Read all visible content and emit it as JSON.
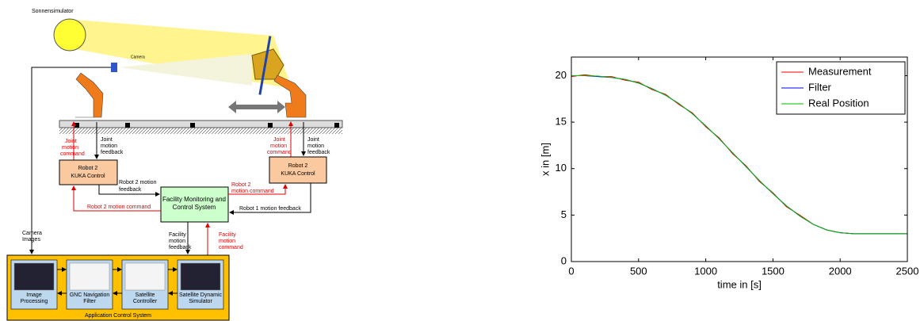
{
  "diagram": {
    "sun_label": "Sonnensimulator",
    "camera_label": "Camera",
    "camera_images": [
      "Camera",
      "Images"
    ],
    "left_command": [
      "Joint",
      "motion",
      "command"
    ],
    "left_feedback": [
      "Joint",
      "motion",
      "feedback"
    ],
    "right_command": [
      "Joint",
      "motion",
      "command"
    ],
    "right_feedback": [
      "Joint",
      "motion",
      "feedback"
    ],
    "left_box": [
      "Robot 2",
      "KUKA Control"
    ],
    "right_box": [
      "Robot 2",
      "KUKA Control"
    ],
    "center_box": [
      "Facility Monitoring and",
      "Control System"
    ],
    "left_motion_feedback": [
      "Robot 2 motion",
      "feedback"
    ],
    "right_motion_command": [
      "Robot 2",
      "motion command"
    ],
    "left_motion_command": "Robot 2 motion command",
    "robot1_feedback": "Robot 1 motion feedback",
    "facility_feedback": [
      "Facility",
      "motion",
      "feedback"
    ],
    "facility_command": [
      "Facility",
      "motion",
      "command"
    ],
    "modules": [
      [
        "Image",
        "Processing"
      ],
      [
        "GNC Navigation",
        "Filter"
      ],
      [
        "Satellite",
        "Controller"
      ],
      [
        "Satellite Dynamic",
        "Simulator"
      ]
    ],
    "frame_label": "Application Control System"
  },
  "chart_data": {
    "type": "line",
    "x": [
      0,
      100,
      200,
      300,
      400,
      500,
      600,
      700,
      800,
      900,
      1000,
      1100,
      1200,
      1300,
      1400,
      1500,
      1600,
      1700,
      1800,
      1900,
      2000,
      2100,
      2200,
      2300,
      2400,
      2500
    ],
    "series": [
      {
        "name": "Measurement",
        "color": "#ff0000",
        "values": [
          19.9,
          20.1,
          19.9,
          19.9,
          19.5,
          19.3,
          18.5,
          18,
          16.9,
          16,
          14.5,
          13.3,
          11.6,
          10.3,
          8.6,
          7.4,
          5.9,
          5,
          4,
          3.4,
          3.1,
          3,
          3,
          3,
          3,
          3
        ]
      },
      {
        "name": "Filter",
        "color": "#0000ff",
        "values": [
          20,
          20,
          19.9,
          19.8,
          19.6,
          19.2,
          18.6,
          17.9,
          17,
          15.9,
          14.6,
          13.2,
          11.7,
          10.2,
          8.7,
          7.3,
          6,
          4.9,
          4,
          3.4,
          3.1,
          3,
          3,
          3,
          3,
          3
        ]
      },
      {
        "name": "Real Position",
        "color": "#00bb00",
        "values": [
          20,
          20,
          19.95,
          19.8,
          19.6,
          19.2,
          18.6,
          17.9,
          17,
          15.9,
          14.6,
          13.2,
          11.7,
          10.2,
          8.7,
          7.3,
          6,
          4.9,
          4,
          3.4,
          3.1,
          3,
          3,
          3,
          3,
          3
        ]
      }
    ],
    "x_label": "time in [s]",
    "y_label": "x in [m]",
    "xlim": [
      0,
      2500
    ],
    "xticks": [
      0,
      500,
      1000,
      1500,
      2000,
      2500
    ],
    "ylim": [
      0,
      22
    ],
    "yticks": [
      0,
      5,
      10,
      15,
      20
    ],
    "legend": "top-right"
  }
}
